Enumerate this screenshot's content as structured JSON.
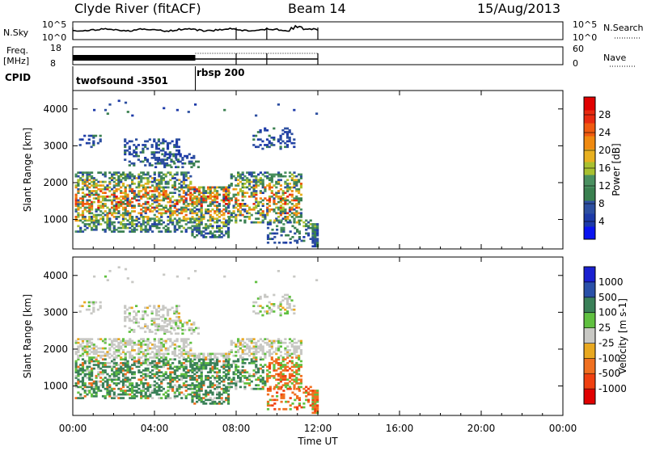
{
  "header": {
    "station": "Clyde River (fitACF)",
    "beam": "Beam 14",
    "date": "15/Aug/2013"
  },
  "strip_labels": {
    "nsky": "N.Sky",
    "nsky_ticks": [
      "10^5",
      "10^0"
    ],
    "nsky_right_ticks": [
      "10^5",
      "10^0"
    ],
    "nsearch": "N.Search",
    "freq": "Freq.",
    "freq_unit": "[MHz]",
    "freq_ticks": [
      "18",
      "8"
    ],
    "nave_ticks": [
      "60",
      "0"
    ],
    "nave": "Nave",
    "cpid": "CPID"
  },
  "cpid_modes": [
    {
      "name": "twofsound -3501",
      "start_h": 0,
      "end_h": 6
    },
    {
      "name": "rbsp 200",
      "start_h": 6,
      "end_h": 12
    }
  ],
  "colors": {
    "power": [
      "#0a14f0",
      "#1d3aa8",
      "#2d4fa0",
      "#3a8050",
      "#4a9060",
      "#a8c030",
      "#e8b020",
      "#f08a10",
      "#f05a10",
      "#e82a10",
      "#e00000"
    ],
    "velocity": [
      "#1a20d0",
      "#2a50a8",
      "#3a8058",
      "#60c040",
      "#c8c8c4",
      "#e8a820",
      "#f07020",
      "#f04010",
      "#e00000"
    ]
  },
  "chart_data": [
    {
      "type": "heatmap",
      "title": "Power",
      "xlabel": "Time UT",
      "ylabel": "Slant Range [km]",
      "xlim": [
        0,
        24
      ],
      "ylim": [
        200,
        4500
      ],
      "x_ticks": [
        "00:00",
        "04:00",
        "08:00",
        "12:00",
        "16:00",
        "20:00",
        "00:00"
      ],
      "y_ticks": [
        "1000",
        "2000",
        "3000",
        "4000"
      ],
      "colorbar": {
        "label": "Power [dB]",
        "ticks": [
          "4",
          "8",
          "12",
          "16",
          "20",
          "24",
          "28"
        ],
        "range": [
          0,
          30
        ]
      },
      "data_time_range": [
        0,
        12
      ]
    },
    {
      "type": "heatmap",
      "title": "Velocity",
      "xlabel": "Time UT",
      "ylabel": "Slant Range [km]",
      "xlim": [
        0,
        24
      ],
      "ylim": [
        200,
        4500
      ],
      "x_ticks": [
        "00:00",
        "04:00",
        "08:00",
        "12:00",
        "16:00",
        "20:00",
        "00:00"
      ],
      "y_ticks": [
        "1000",
        "2000",
        "3000",
        "4000"
      ],
      "colorbar": {
        "label": "Velocity [m s-1]",
        "ticks": [
          "1000",
          "500",
          "100",
          "25",
          "-25",
          "-100",
          "-500",
          "-1000"
        ]
      },
      "data_time_range": [
        0,
        12
      ]
    }
  ],
  "xaxis": {
    "label": "Time UT"
  }
}
